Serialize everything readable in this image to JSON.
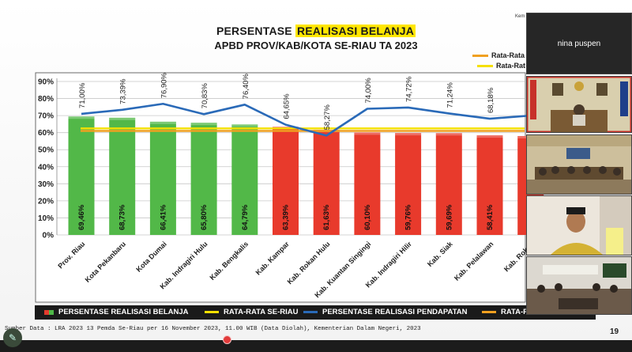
{
  "slide": {
    "title_prefix": "PERSENTASE ",
    "title_highlight": "REALISASI BELANJA",
    "subtitle": "APBD PROV/KAB/KOTA SE-RIAU TA 2023",
    "corner_text": "Kem",
    "source_text": "Sumber Data : LRA 2023 13 Pemda Se-Riau per 16 November 2023, 11.00 WIB (Data Diolah), Kementerian Dalam Negeri, 2023",
    "page_number": "19",
    "right_legend": [
      {
        "label": "Rata-Rata",
        "color": "#f0a020"
      },
      {
        "label": "Rata-Rat",
        "color": "#f5e000"
      }
    ],
    "bottom_legend": [
      {
        "label": "PERSENTASE REALISASI BELANJA",
        "color": "#e23b2e",
        "color2": "#4fb848"
      },
      {
        "label": "RATA-RATA SE-RIAU",
        "color": "#f5e000"
      },
      {
        "label": "PERSENTASE REALISASI PENDAPATAN",
        "color": "#2a6ab8"
      },
      {
        "label": "RATA-RA",
        "color": "#f0a020"
      }
    ]
  },
  "chart_data": {
    "type": "bar",
    "categories": [
      "Prov. Riau",
      "Kota Pekanbaru",
      "Kota Dumai",
      "Kab. Indragiri Hulu",
      "Kab. Bengkalis",
      "Kab. Kampar",
      "Kab. Rokan Hulu",
      "Kab. Kuantan Singingi",
      "Kab. Indragiri Hilir",
      "Kab. Siak",
      "Kab. Pelalawan",
      "Kab. Rokan"
    ],
    "series": [
      {
        "name": "PERSENTASE REALISASI BELANJA",
        "values": [
          69.46,
          68.73,
          66.41,
          65.8,
          64.79,
          63.39,
          61.63,
          60.1,
          59.76,
          59.69,
          58.41,
          58.0
        ],
        "labels": [
          "69,46%",
          "68,73%",
          "66,41%",
          "65,80%",
          "64,79%",
          "63,39%",
          "61,63%",
          "60,10%",
          "59,76%",
          "59,69%",
          "58,41%",
          ""
        ],
        "bar_colors": [
          "#52b848",
          "#52b848",
          "#52b848",
          "#52b848",
          "#52b848",
          "#e83a2c",
          "#e83a2c",
          "#e83a2c",
          "#e83a2c",
          "#e83a2c",
          "#e83a2c",
          "#e83a2c"
        ]
      },
      {
        "name": "PERSENTASE REALISASI PENDAPATAN",
        "values": [
          71.0,
          73.39,
          76.9,
          70.83,
          76.4,
          64.65,
          58.27,
          74.0,
          74.72,
          71.24,
          68.18,
          70.0
        ],
        "labels": [
          "71,00%",
          "73,39%",
          "76,90%",
          "70,83%",
          "76,40%",
          "64,65%",
          "58,27%",
          "74,00%",
          "74,72%",
          "71,24%",
          "68,18%",
          ""
        ]
      }
    ],
    "reference_lines": [
      {
        "name": "RATA-RATA SE-RIAU",
        "value": 62.5,
        "color": "#f5e000"
      },
      {
        "name": "RATA-RATA",
        "value": 61.0,
        "color": "#f0a020"
      }
    ],
    "yticks": [
      "0%",
      "10%",
      "20%",
      "30%",
      "40%",
      "50%",
      "60%",
      "70%",
      "80%",
      "90%"
    ],
    "ylim": [
      0,
      90
    ],
    "grid": true
  },
  "participants": [
    {
      "name": "nina puspen",
      "kind": "name-tile"
    },
    {
      "name": "",
      "kind": "video-office"
    },
    {
      "name": "",
      "kind": "video-meeting-room"
    },
    {
      "name": "",
      "kind": "video-person"
    },
    {
      "name": "",
      "kind": "video-conference-room"
    }
  ]
}
